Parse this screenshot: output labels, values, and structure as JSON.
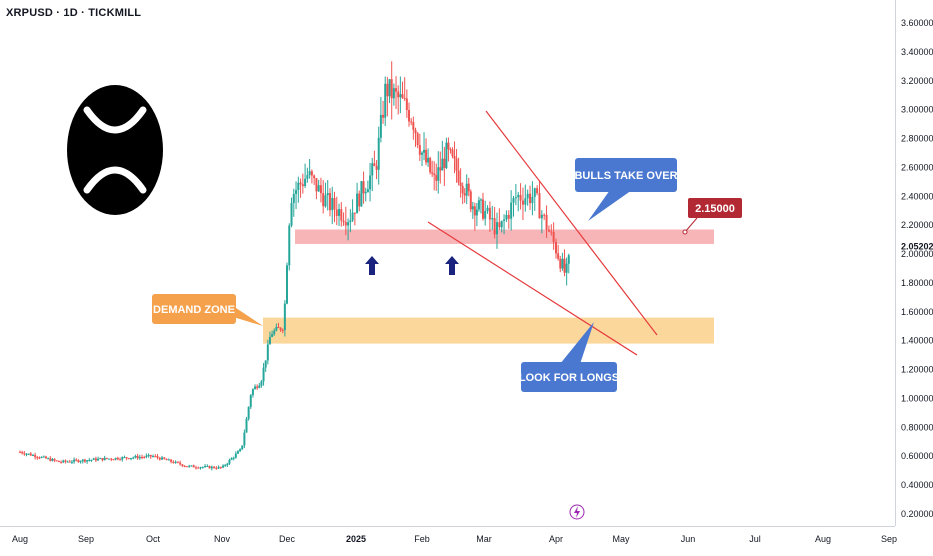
{
  "header": {
    "symbol": "XRPUSD · 1D · TICKMILL"
  },
  "logo": {
    "icon": "xrp-logo"
  },
  "chart_data": {
    "type": "candlestick",
    "price_axis": {
      "ticks": [
        0.2,
        0.4,
        0.6,
        0.8,
        1.0,
        1.2,
        1.4,
        1.6,
        1.8,
        2.0,
        2.2,
        2.4,
        2.6,
        2.8,
        3.0,
        3.2,
        3.4,
        3.6
      ],
      "tick_labels": [
        "0.20000",
        "0.40000",
        "0.60000",
        "0.80000",
        "1.00000",
        "1.20000",
        "1.40000",
        "1.60000",
        "1.80000",
        "2.00000",
        "2.20000",
        "2.40000",
        "2.60000",
        "2.80000",
        "3.00000",
        "3.20000",
        "3.40000",
        "3.60000"
      ],
      "ylim": [
        0.18,
        3.7
      ]
    },
    "time_axis": {
      "labels": [
        "Aug",
        "Sep",
        "Oct",
        "Nov",
        "Dec",
        "2025",
        "Feb",
        "Mar",
        "Apr",
        "May",
        "Jun",
        "Jul",
        "Aug",
        "Sep"
      ],
      "months_since_start": [
        0,
        1,
        2,
        3,
        4,
        5,
        6,
        7,
        8,
        9,
        10,
        11,
        12,
        13
      ],
      "bold": [
        "2025"
      ]
    },
    "last_price": {
      "value": 2.05202,
      "label": "2.05202"
    },
    "price_tag": {
      "value": 2.15,
      "label": "2.15000",
      "color": "#b22833"
    },
    "zones": [
      {
        "name": "resistance-support",
        "from": 2.07,
        "to": 2.17,
        "color": "#f7a8ab"
      },
      {
        "name": "demand",
        "from": 1.38,
        "to": 1.56,
        "color": "#fcd08b"
      }
    ],
    "callouts": [
      {
        "name": "demand-zone",
        "text": "DEMAND ZONE",
        "color": "#f5a04a"
      },
      {
        "name": "bulls-take-over",
        "text": "BULLS TAKE OVER",
        "color": "#4a78d0"
      },
      {
        "name": "look-for-longs",
        "text": "LOOK FOR LONGS",
        "color": "#4a78d0"
      }
    ],
    "arrows": [
      {
        "name": "up-arrow-1",
        "price": 1.95
      },
      {
        "name": "up-arrow-2",
        "price": 1.95
      }
    ],
    "trendlines": [
      {
        "name": "upper-wedge-line",
        "color": "#e5393b"
      },
      {
        "name": "lower-wedge-line",
        "color": "#e5393b"
      }
    ],
    "colors": {
      "up": "#26a69a",
      "down": "#ef5350",
      "axis_text": "#131722"
    }
  }
}
